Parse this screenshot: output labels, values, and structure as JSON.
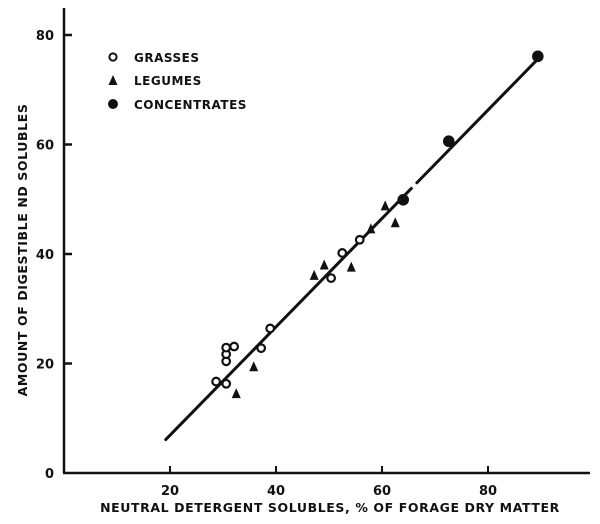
{
  "chart_data": {
    "type": "scatter",
    "title": "",
    "xlabel": "NEUTRAL DETERGENT SOLUBLES, % OF FORAGE DRY MATTER",
    "ylabel": "AMOUNT OF DIGESTIBLE ND SOLUBLES",
    "xlim": [
      0,
      100
    ],
    "ylim": [
      0,
      85
    ],
    "x_ticks": [
      20,
      40,
      60,
      80
    ],
    "y_ticks": [
      0,
      20,
      40,
      60,
      80
    ],
    "x_origin_label": "0",
    "grid": false,
    "legend_position": "upper-left",
    "legend": [
      {
        "label": "GRASSES",
        "marker": "open-circle"
      },
      {
        "label": "LEGUMES",
        "marker": "filled-triangle"
      },
      {
        "label": "CONCENTRATES",
        "marker": "filled-circle"
      }
    ],
    "series": [
      {
        "name": "GRASSES",
        "marker": "open-circle",
        "points": [
          [
            28.7,
            16.7
          ],
          [
            30.6,
            16.3
          ],
          [
            30.6,
            20.4
          ],
          [
            30.6,
            21.7
          ],
          [
            30.6,
            22.9
          ],
          [
            32.1,
            23.1
          ],
          [
            37.2,
            22.8
          ],
          [
            38.9,
            26.4
          ],
          [
            50.4,
            35.6
          ],
          [
            52.5,
            40.2
          ],
          [
            55.8,
            42.6
          ]
        ]
      },
      {
        "name": "LEGUMES",
        "marker": "filled-triangle",
        "points": [
          [
            32.5,
            14.5
          ],
          [
            35.8,
            19.4
          ],
          [
            47.2,
            36.1
          ],
          [
            49.1,
            38.0
          ],
          [
            54.2,
            37.6
          ],
          [
            57.9,
            44.6
          ],
          [
            60.6,
            48.8
          ],
          [
            62.5,
            45.7
          ]
        ]
      },
      {
        "name": "CONCENTRATES",
        "marker": "filled-circle",
        "points": [
          [
            64.0,
            49.9
          ],
          [
            72.6,
            60.6
          ],
          [
            89.4,
            76.1
          ]
        ]
      }
    ],
    "regression_line": {
      "x_start": 19.2,
      "y_start": 6.1,
      "x_end": 89.4,
      "y_end": 75.6,
      "approx_equation": "Y = 0.99X - 12.9"
    }
  }
}
